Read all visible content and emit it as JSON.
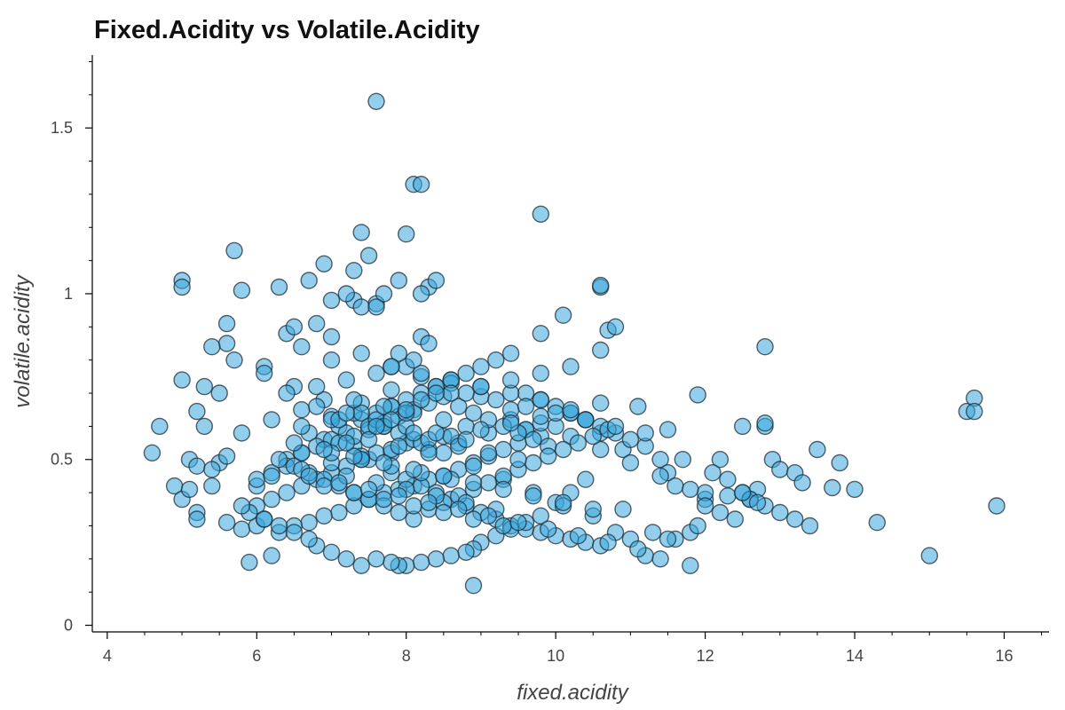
{
  "chart_data": {
    "type": "scatter",
    "title": "Fixed.Acidity vs Volatile.Acidity",
    "xlabel": "fixed.acidity",
    "ylabel": "volatile.acidity",
    "xlim": [
      3.8,
      16.6
    ],
    "ylim": [
      -0.02,
      1.72
    ],
    "xticks": [
      4,
      6,
      8,
      10,
      12,
      14,
      16
    ],
    "xtick_labels": [
      "4",
      "6",
      "8",
      "10",
      "12",
      "14",
      "16"
    ],
    "yticks": [
      0,
      0.5,
      1,
      1.5
    ],
    "ytick_labels": [
      "0",
      "0.5",
      "1",
      "1.5"
    ],
    "grid": false,
    "legend": "none",
    "marker_color": "#3aa7dd",
    "marker_edge_color": "#1f2d3a",
    "marker_opacity": 0.55,
    "series": [
      {
        "x": [
          7.6,
          8.1,
          8.2,
          9.8,
          8.0,
          7.4,
          7.5,
          5.7,
          7.3,
          6.9,
          5.8,
          5.0,
          5.0,
          6.3,
          6.7,
          7.0,
          7.3,
          7.2,
          7.6,
          8.3,
          8.4,
          8.2,
          7.9,
          7.7,
          7.4,
          6.4,
          6.6,
          6.5,
          6.8,
          7.0,
          6.1,
          5.6,
          5.6,
          5.4,
          5.3,
          5.0,
          5.2,
          4.7,
          4.6,
          4.9,
          5.0,
          5.1,
          5.2,
          5.2,
          5.4,
          5.5,
          5.6,
          5.8,
          5.9,
          6.0,
          6.2,
          6.0,
          6.4,
          6.6,
          6.7,
          6.9,
          7.1,
          7.3,
          7.5,
          7.8,
          8.0,
          8.3,
          8.5,
          8.7,
          8.8,
          9.1,
          9.4,
          9.6,
          9.8,
          10.1,
          10.6,
          10.6,
          10.7,
          10.8,
          10.6,
          10.4,
          10.2,
          10.0,
          9.8,
          9.6,
          9.5,
          9.3,
          9.1,
          8.9,
          8.7,
          8.5,
          8.3,
          8.1,
          7.9,
          7.7,
          7.5,
          7.3,
          7.1,
          6.9,
          6.7,
          6.5,
          6.3,
          6.1,
          6.0,
          6.2,
          6.4,
          6.6,
          6.8,
          7.0,
          7.2,
          7.4,
          7.6,
          7.8,
          8.0,
          8.2,
          8.4,
          8.6,
          8.8,
          9.0,
          9.2,
          9.4,
          9.6,
          9.8,
          10.0,
          10.2,
          10.4,
          10.6,
          10.8,
          11.0,
          11.2,
          11.4,
          11.6,
          11.8,
          11.9,
          12.0,
          12.0,
          12.2,
          12.3,
          12.5,
          12.5,
          12.6,
          12.7,
          12.8,
          12.8,
          12.9,
          13.0,
          13.2,
          13.3,
          13.5,
          13.7,
          13.8,
          14.0,
          14.3,
          15.0,
          15.5,
          15.6,
          15.6,
          15.9,
          12.8,
          11.9,
          11.5,
          11.1,
          10.9,
          10.6,
          10.4,
          10.2,
          10.0,
          9.8,
          9.6,
          9.4,
          9.2,
          9.0,
          8.9,
          8.8,
          8.6,
          8.4,
          8.2,
          8.0,
          7.9,
          7.8,
          7.6,
          7.4,
          7.2,
          7.0,
          6.8,
          6.7,
          6.5,
          6.3,
          6.1,
          5.9,
          5.8,
          6.0,
          6.2,
          6.4,
          6.6,
          6.8,
          7.0,
          7.2,
          7.4,
          7.6,
          7.8,
          8.0,
          8.2,
          8.4,
          8.6,
          8.8,
          9.0,
          9.2,
          9.4,
          9.6,
          9.8,
          10.0,
          10.2,
          10.4,
          10.6,
          10.8,
          11.0,
          11.2,
          11.4,
          11.5,
          11.6,
          11.8,
          12.0,
          12.2,
          12.4,
          12.6,
          12.8,
          13.0,
          13.2,
          13.4,
          11.3,
          11.5,
          11.7,
          12.1,
          12.3,
          12.5,
          12.7,
          10.9,
          10.5,
          10.1,
          9.7,
          9.3,
          8.9,
          8.5,
          8.1,
          7.7,
          7.3,
          6.9,
          6.5,
          6.1,
          5.7,
          5.5,
          5.3,
          5.1,
          5.2,
          5.4,
          5.6,
          5.8,
          6.2,
          6.6,
          7.0,
          7.4,
          7.8,
          8.2,
          8.6,
          9.0,
          9.4,
          9.8,
          10.2,
          10.6,
          11.0,
          11.4,
          11.8,
          7.1,
          7.3,
          7.5,
          7.7,
          7.9,
          8.1,
          8.3,
          8.5,
          8.7,
          8.9,
          9.1,
          9.3,
          9.5,
          9.7,
          9.9,
          6.3,
          6.5,
          6.7,
          6.9,
          7.1,
          7.3,
          7.5,
          7.7,
          7.9,
          8.1,
          8.3,
          8.5,
          8.7,
          8.9,
          9.1,
          9.3,
          9.5,
          9.7,
          9.9,
          10.1,
          10.3,
          10.5,
          10.7,
          6.4,
          6.8,
          7.2,
          7.6,
          8.0,
          8.4,
          8.8,
          9.2,
          9.6,
          10.0,
          10.4,
          10.8,
          11.2,
          7.0,
          7.4,
          7.8,
          8.2,
          8.6,
          9.0,
          9.4,
          9.8,
          6.6,
          7.0,
          7.4,
          7.8,
          8.2,
          8.6,
          9.0,
          9.4,
          9.8,
          10.2,
          6.2,
          6.6,
          7.0,
          7.4,
          7.8,
          8.2,
          8.6,
          9.0,
          9.4,
          9.8,
          10.2,
          10.6,
          7.2,
          7.6,
          8.0,
          8.4,
          8.8,
          9.2,
          7.1,
          7.5,
          7.9,
          8.3,
          8.7,
          9.1,
          9.5,
          6.9,
          7.3,
          7.7,
          8.1,
          8.5,
          8.9,
          9.3,
          6.8,
          7.2,
          7.6,
          8.0,
          8.4,
          8.8,
          7.0,
          7.4,
          7.8,
          8.2,
          8.6,
          7.3,
          7.7,
          8.1,
          8.5,
          7.5,
          7.9,
          8.3,
          7.7,
          8.1,
          7.8,
          8.0,
          6.5,
          6.9,
          7.3,
          7.7,
          8.1,
          8.5,
          8.9,
          9.3,
          9.7,
          10.1,
          10.5,
          6.7,
          7.1,
          7.5,
          7.9,
          8.3,
          8.7,
          9.1,
          9.5,
          9.9,
          10.3,
          10.7,
          11.1,
          8.9,
          7.6,
          8.2,
          7.9,
          8.1,
          7.8,
          8.3,
          7.2,
          7.6,
          8.0,
          8.4
        ],
        "y": [
          1.58,
          1.33,
          1.33,
          1.24,
          1.18,
          1.185,
          1.115,
          1.13,
          1.07,
          1.09,
          1.01,
          1.04,
          1.02,
          1.02,
          1.04,
          0.98,
          0.98,
          1.0,
          0.97,
          1.02,
          1.04,
          1.0,
          1.04,
          1.0,
          0.96,
          0.88,
          0.84,
          0.9,
          0.91,
          0.87,
          0.78,
          0.91,
          0.85,
          0.84,
          0.72,
          0.74,
          0.645,
          0.6,
          0.52,
          0.42,
          0.38,
          0.41,
          0.34,
          0.32,
          0.42,
          0.49,
          0.31,
          0.29,
          0.19,
          0.3,
          0.21,
          0.42,
          0.5,
          0.52,
          0.58,
          0.56,
          0.6,
          0.54,
          0.5,
          0.52,
          0.55,
          0.53,
          0.57,
          0.55,
          0.6,
          0.58,
          0.62,
          0.59,
          0.88,
          0.935,
          1.02,
          1.025,
          0.89,
          0.9,
          0.83,
          0.62,
          0.64,
          0.6,
          0.57,
          0.59,
          0.55,
          0.53,
          0.51,
          0.49,
          0.47,
          0.45,
          0.44,
          0.42,
          0.41,
          0.4,
          0.38,
          0.36,
          0.34,
          0.33,
          0.31,
          0.3,
          0.28,
          0.32,
          0.36,
          0.38,
          0.4,
          0.42,
          0.44,
          0.46,
          0.48,
          0.5,
          0.52,
          0.46,
          0.44,
          0.42,
          0.4,
          0.38,
          0.36,
          0.34,
          0.32,
          0.3,
          0.29,
          0.28,
          0.27,
          0.26,
          0.25,
          0.24,
          0.28,
          0.26,
          0.21,
          0.2,
          0.26,
          0.28,
          0.3,
          0.38,
          0.4,
          0.5,
          0.39,
          0.4,
          0.6,
          0.38,
          0.41,
          0.6,
          0.61,
          0.5,
          0.47,
          0.46,
          0.43,
          0.53,
          0.415,
          0.49,
          0.41,
          0.31,
          0.21,
          0.645,
          0.685,
          0.645,
          0.36,
          0.84,
          0.695,
          0.59,
          0.66,
          0.53,
          0.58,
          0.44,
          0.4,
          0.37,
          0.33,
          0.31,
          0.29,
          0.27,
          0.25,
          0.23,
          0.22,
          0.21,
          0.2,
          0.19,
          0.18,
          0.18,
          0.19,
          0.2,
          0.18,
          0.2,
          0.22,
          0.24,
          0.26,
          0.28,
          0.3,
          0.32,
          0.34,
          0.36,
          0.44,
          0.46,
          0.48,
          0.52,
          0.54,
          0.56,
          0.58,
          0.62,
          0.64,
          0.66,
          0.68,
          0.7,
          0.72,
          0.74,
          0.76,
          0.78,
          0.8,
          0.82,
          0.7,
          0.68,
          0.66,
          0.64,
          0.62,
          0.6,
          0.58,
          0.56,
          0.54,
          0.5,
          0.46,
          0.42,
          0.18,
          0.36,
          0.34,
          0.32,
          0.38,
          0.36,
          0.34,
          0.32,
          0.3,
          0.28,
          0.26,
          0.5,
          0.46,
          0.44,
          0.4,
          0.37,
          0.35,
          0.33,
          0.36,
          0.4,
          0.44,
          0.48,
          0.52,
          0.56,
          0.6,
          0.64,
          0.68,
          0.72,
          0.76,
          0.8,
          0.7,
          0.6,
          0.5,
          0.48,
          0.47,
          0.51,
          0.58,
          0.62,
          0.65,
          0.63,
          0.67,
          0.71,
          0.75,
          0.73,
          0.69,
          0.65,
          0.61,
          0.57,
          0.53,
          0.49,
          0.45,
          0.41,
          0.55,
          0.57,
          0.59,
          0.61,
          0.63,
          0.65,
          0.67,
          0.69,
          0.66,
          0.64,
          0.62,
          0.6,
          0.58,
          0.56,
          0.54,
          0.5,
          0.48,
          0.46,
          0.44,
          0.42,
          0.4,
          0.38,
          0.36,
          0.34,
          0.32,
          0.35,
          0.37,
          0.39,
          0.41,
          0.43,
          0.45,
          0.47,
          0.49,
          0.51,
          0.53,
          0.55,
          0.57,
          0.59,
          0.7,
          0.72,
          0.74,
          0.76,
          0.78,
          0.72,
          0.7,
          0.68,
          0.66,
          0.64,
          0.62,
          0.6,
          0.58,
          0.8,
          0.82,
          0.78,
          0.76,
          0.74,
          0.72,
          0.7,
          0.68,
          0.6,
          0.62,
          0.64,
          0.66,
          0.68,
          0.7,
          0.72,
          0.74,
          0.76,
          0.78,
          0.45,
          0.47,
          0.49,
          0.51,
          0.53,
          0.55,
          0.57,
          0.59,
          0.61,
          0.63,
          0.65,
          0.67,
          0.45,
          0.43,
          0.41,
          0.39,
          0.37,
          0.35,
          0.62,
          0.6,
          0.58,
          0.56,
          0.54,
          0.52,
          0.5,
          0.42,
          0.4,
          0.38,
          0.36,
          0.34,
          0.32,
          0.3,
          0.66,
          0.64,
          0.62,
          0.6,
          0.58,
          0.56,
          0.52,
          0.5,
          0.48,
          0.46,
          0.44,
          0.68,
          0.66,
          0.64,
          0.62,
          0.56,
          0.54,
          0.52,
          0.6,
          0.58,
          0.62,
          0.64,
          0.55,
          0.53,
          0.51,
          0.49,
          0.47,
          0.45,
          0.43,
          0.41,
          0.39,
          0.37,
          0.35,
          0.45,
          0.43,
          0.41,
          0.39,
          0.37,
          0.35,
          0.33,
          0.31,
          0.29,
          0.27,
          0.25,
          0.23,
          0.12,
          0.96,
          0.87,
          0.82,
          0.8,
          0.78,
          0.85,
          0.55,
          0.6,
          0.65,
          0.7
        ]
      }
    ]
  }
}
